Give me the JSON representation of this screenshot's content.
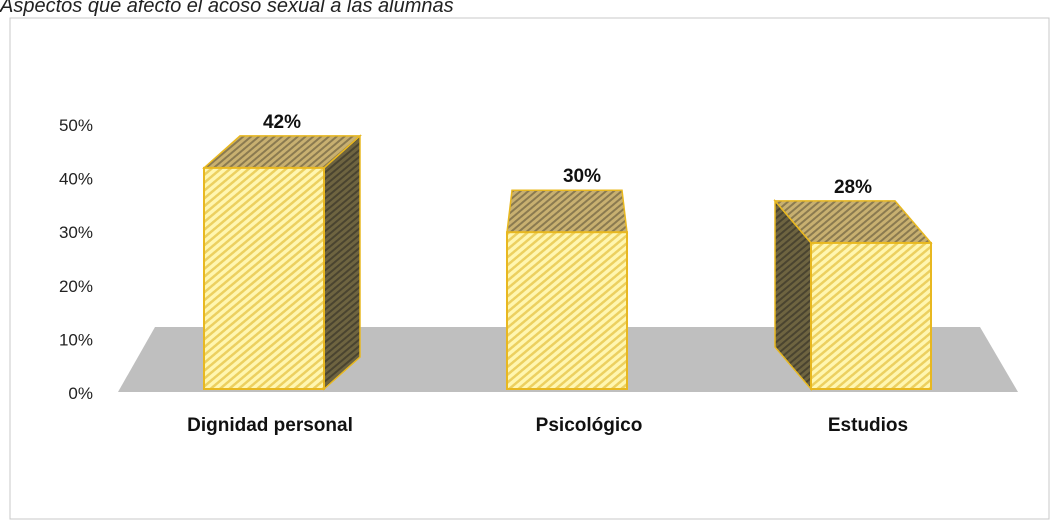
{
  "chart_data": {
    "type": "bar3d",
    "title": "Aspectos que afectó el acoso sexual a las alumnas",
    "categories": [
      "Dignidad personal",
      "Psicológico",
      "Estudios"
    ],
    "values": [
      42,
      30,
      28
    ],
    "value_labels": [
      "42%",
      "30%",
      "28%"
    ],
    "color": "#f5e27a",
    "ylim": [
      0,
      50
    ],
    "yticks": [
      {
        "value": 0,
        "label": "0%"
      },
      {
        "value": 10,
        "label": "10%"
      },
      {
        "value": 20,
        "label": "20%"
      },
      {
        "value": 30,
        "label": "30%"
      },
      {
        "value": 40,
        "label": "40%"
      },
      {
        "value": 50,
        "label": "50%"
      }
    ]
  }
}
